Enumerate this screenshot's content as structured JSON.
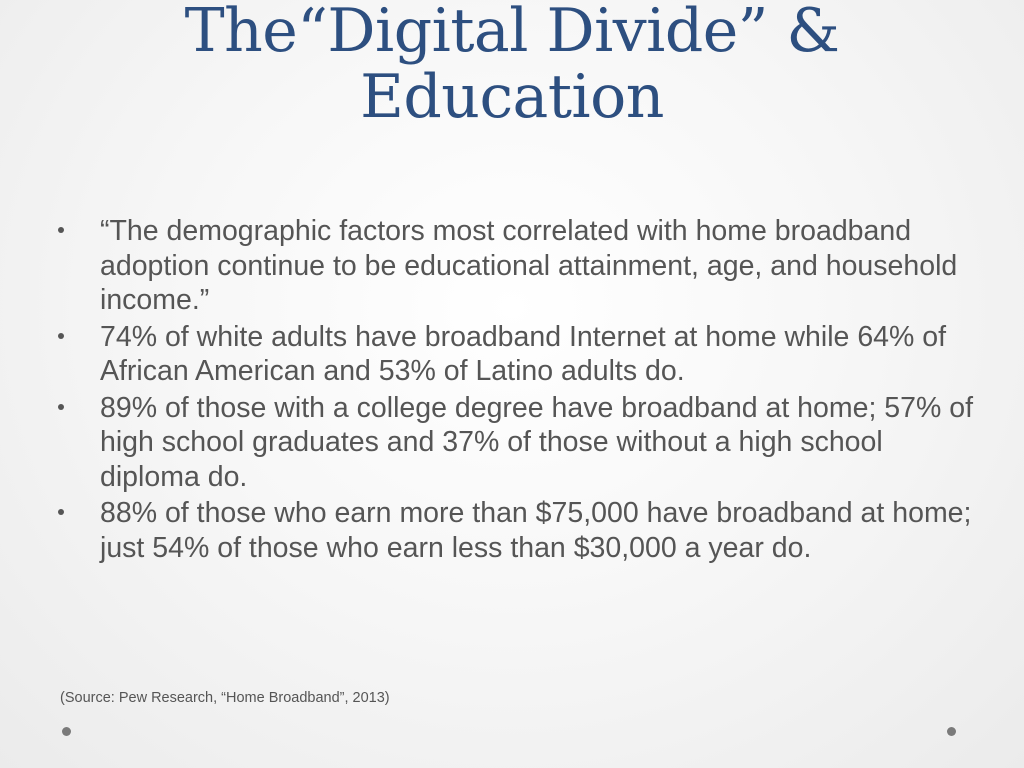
{
  "slide": {
    "title_line1": "The“Digital Divide” &",
    "title_line2": "Education",
    "bullets": [
      {
        "text": "“The demographic factors most correlated with home broadband adoption continue to be educational attainment, age, and household income.”"
      },
      {
        "text": "74% of white adults have broadband Internet at home while 64% of African American and 53% of Latino adults do."
      },
      {
        "text": "89% of those with a college degree have broadband at home; 57% of high school graduates and 37% of those without a high school diploma do."
      },
      {
        "text": "88% of those who earn more than $75,000 have broadband at home; just 54% of those who earn less than $30,000 a year do."
      }
    ],
    "source": "(Source: Pew Research, “Home Broadband”, 2013)"
  },
  "colors": {
    "title": "#2d4f80",
    "body_text": "#555555",
    "background": "#f7f7f7",
    "decor_dots": "#7a7a7a"
  }
}
